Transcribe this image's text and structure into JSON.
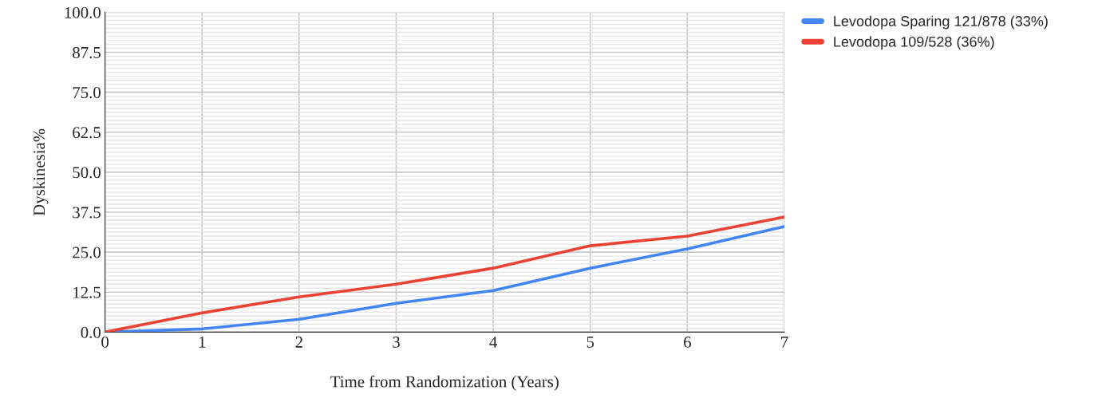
{
  "chart_data": {
    "type": "line",
    "xlabel": "Time from Randomization (Years)",
    "ylabel": "Dyskinesia%",
    "x": [
      0,
      1,
      2,
      3,
      4,
      5,
      6,
      7
    ],
    "series": [
      {
        "name": "Levodopa Sparing 121/878 (33%)",
        "color": "#4285f4",
        "values": [
          0,
          1,
          4,
          9,
          13,
          20,
          26,
          33
        ]
      },
      {
        "name": "Levodopa 109/528 (36%)",
        "color": "#ea4335",
        "values": [
          0,
          6,
          11,
          15,
          20,
          27,
          30,
          36
        ]
      }
    ],
    "xlim": [
      0,
      7
    ],
    "xticks": [
      0,
      1,
      2,
      3,
      4,
      5,
      6,
      7
    ],
    "ylim": [
      0,
      100
    ],
    "yticks": [
      {
        "value": 0,
        "label": "0.0"
      },
      {
        "value": 12.5,
        "label": "12.5"
      },
      {
        "value": 25,
        "label": "25.0"
      },
      {
        "value": 37.5,
        "label": "37.5"
      },
      {
        "value": 50,
        "label": "50.0"
      },
      {
        "value": 62.5,
        "label": "62.5"
      },
      {
        "value": 75,
        "label": "75.0"
      },
      {
        "value": 87.5,
        "label": "87.5"
      },
      {
        "value": 100,
        "label": "100.0"
      }
    ],
    "grid": true,
    "legend": "top right",
    "marker": "none",
    "line_style": "solid"
  }
}
